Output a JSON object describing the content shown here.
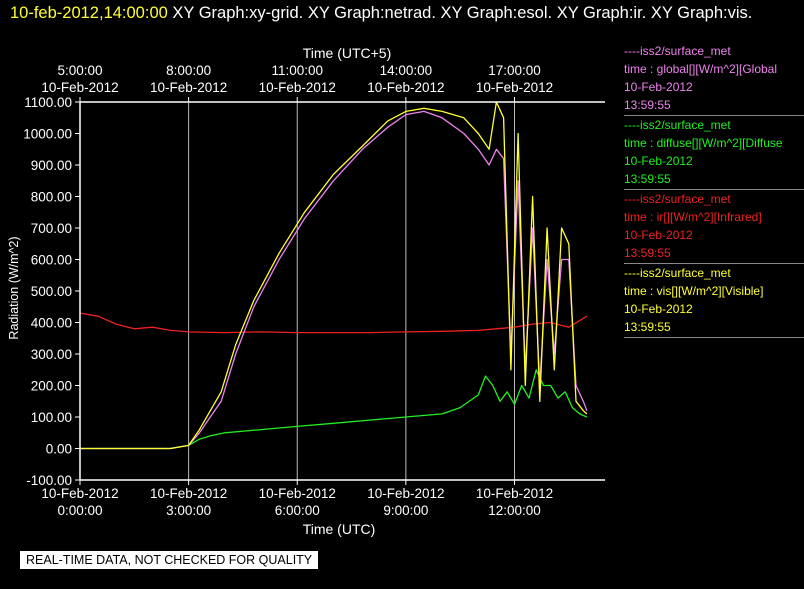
{
  "header": {
    "date_time": "10-feb-2012,14:00:00",
    "graphs_text": "XY Graph:xy-grid.  XY Graph:netrad.  XY Graph:esol.  XY Graph:ir.  XY Graph:vis."
  },
  "footer_note": "REAL-TIME DATA, NOT CHECKED FOR QUALITY",
  "legend": [
    {
      "source": "----iss2/surface_met",
      "var": "time : global[][W/m^2][Global",
      "date": "10-Feb-2012",
      "time": "13:59:55",
      "color": "#ee82ee"
    },
    {
      "source": "----iss2/surface_met",
      "var": "time : diffuse[][W/m^2][Diffuse",
      "date": "10-Feb-2012",
      "time": "13:59:55",
      "color": "#22ee22"
    },
    {
      "source": "----iss2/surface_met",
      "var": "time : ir[][W/m^2][Infrared]",
      "date": "10-Feb-2012",
      "time": "13:59:55",
      "color": "#ee2222"
    },
    {
      "source": "----iss2/surface_met",
      "var": "time : vis[][W/m^2][Visible]",
      "date": "10-Feb-2012",
      "time": "13:59:55",
      "color": "#ffff33"
    }
  ],
  "chart_data": {
    "type": "line",
    "title": "",
    "xlabel": "Time (UTC)",
    "x2label": "Time (UTC+5)",
    "ylabel": "Radiation (W/m^2)",
    "xlim": [
      0,
      14.5
    ],
    "ylim": [
      -100,
      1100
    ],
    "grid": "vertical",
    "yticks": [
      "-100.00",
      "0.00",
      "100.00",
      "200.00",
      "300.00",
      "400.00",
      "500.00",
      "600.00",
      "700.00",
      "800.00",
      "900.00",
      "1000.00",
      "1100.00"
    ],
    "ytick_values": [
      -100,
      0,
      100,
      200,
      300,
      400,
      500,
      600,
      700,
      800,
      900,
      1000,
      1100
    ],
    "xticks_bottom": [
      {
        "x": 0,
        "date": "10-Feb-2012",
        "time": "0:00:00"
      },
      {
        "x": 3,
        "date": "10-Feb-2012",
        "time": "3:00:00"
      },
      {
        "x": 6,
        "date": "10-Feb-2012",
        "time": "6:00:00"
      },
      {
        "x": 9,
        "date": "10-Feb-2012",
        "time": "9:00:00"
      },
      {
        "x": 12,
        "date": "10-Feb-2012",
        "time": "12:00:00"
      }
    ],
    "xticks_top": [
      {
        "x": 0,
        "time": "5:00:00",
        "date": "10-Feb-2012"
      },
      {
        "x": 3,
        "time": "8:00:00",
        "date": "10-Feb-2012"
      },
      {
        "x": 6,
        "time": "11:00:00",
        "date": "10-Feb-2012"
      },
      {
        "x": 9,
        "time": "14:00:00",
        "date": "10-Feb-2012"
      },
      {
        "x": 12,
        "time": "17:00:00",
        "date": "10-Feb-2012"
      }
    ],
    "series": [
      {
        "name": "global",
        "color": "#ee82ee",
        "x": [
          0,
          2.5,
          3,
          3.3,
          3.6,
          3.9,
          4.3,
          4.8,
          5.5,
          6.2,
          7,
          7.8,
          8.5,
          9,
          9.5,
          10,
          10.6,
          11,
          11.3,
          11.5,
          11.7,
          11.9,
          12.1,
          12.3,
          12.5,
          12.7,
          12.9,
          13.1,
          13.3,
          13.5,
          13.7,
          13.9,
          14
        ],
        "y": [
          0,
          0,
          10,
          50,
          100,
          150,
          300,
          450,
          600,
          730,
          850,
          950,
          1020,
          1060,
          1070,
          1050,
          1000,
          950,
          900,
          950,
          920,
          300,
          850,
          250,
          700,
          200,
          600,
          300,
          600,
          600,
          200,
          150,
          120
        ]
      },
      {
        "name": "diffuse",
        "color": "#22ee22",
        "x": [
          0,
          2.5,
          3,
          3.3,
          3.6,
          4,
          5,
          6,
          7,
          8,
          9,
          10,
          10.5,
          11,
          11.2,
          11.4,
          11.6,
          11.8,
          12,
          12.2,
          12.4,
          12.6,
          12.8,
          13,
          13.2,
          13.4,
          13.6,
          13.8,
          14
        ],
        "y": [
          0,
          0,
          10,
          30,
          40,
          50,
          60,
          70,
          80,
          90,
          100,
          110,
          130,
          170,
          230,
          200,
          150,
          180,
          140,
          200,
          160,
          250,
          200,
          200,
          160,
          180,
          130,
          110,
          100
        ]
      },
      {
        "name": "ir",
        "color": "#ee2222",
        "x": [
          0,
          0.5,
          1,
          1.5,
          2,
          2.5,
          3,
          4,
          5,
          6,
          7,
          8,
          9,
          10,
          11,
          11.5,
          12,
          12.5,
          13,
          13.5,
          14
        ],
        "y": [
          430,
          420,
          395,
          380,
          385,
          375,
          370,
          368,
          370,
          368,
          368,
          368,
          370,
          372,
          375,
          380,
          385,
          395,
          400,
          385,
          420
        ]
      },
      {
        "name": "vis",
        "color": "#ffff33",
        "x": [
          0,
          2.5,
          3,
          3.3,
          3.6,
          3.9,
          4.3,
          4.8,
          5.5,
          6.2,
          7,
          7.8,
          8.5,
          9,
          9.5,
          10,
          10.6,
          11,
          11.3,
          11.5,
          11.7,
          11.9,
          12.1,
          12.3,
          12.5,
          12.7,
          12.9,
          13.1,
          13.3,
          13.5,
          13.7,
          13.9,
          14
        ],
        "y": [
          0,
          0,
          10,
          60,
          120,
          180,
          330,
          470,
          620,
          750,
          870,
          960,
          1040,
          1070,
          1080,
          1070,
          1050,
          1000,
          950,
          1100,
          1050,
          250,
          1000,
          200,
          800,
          150,
          700,
          250,
          700,
          650,
          150,
          120,
          110
        ]
      }
    ]
  }
}
